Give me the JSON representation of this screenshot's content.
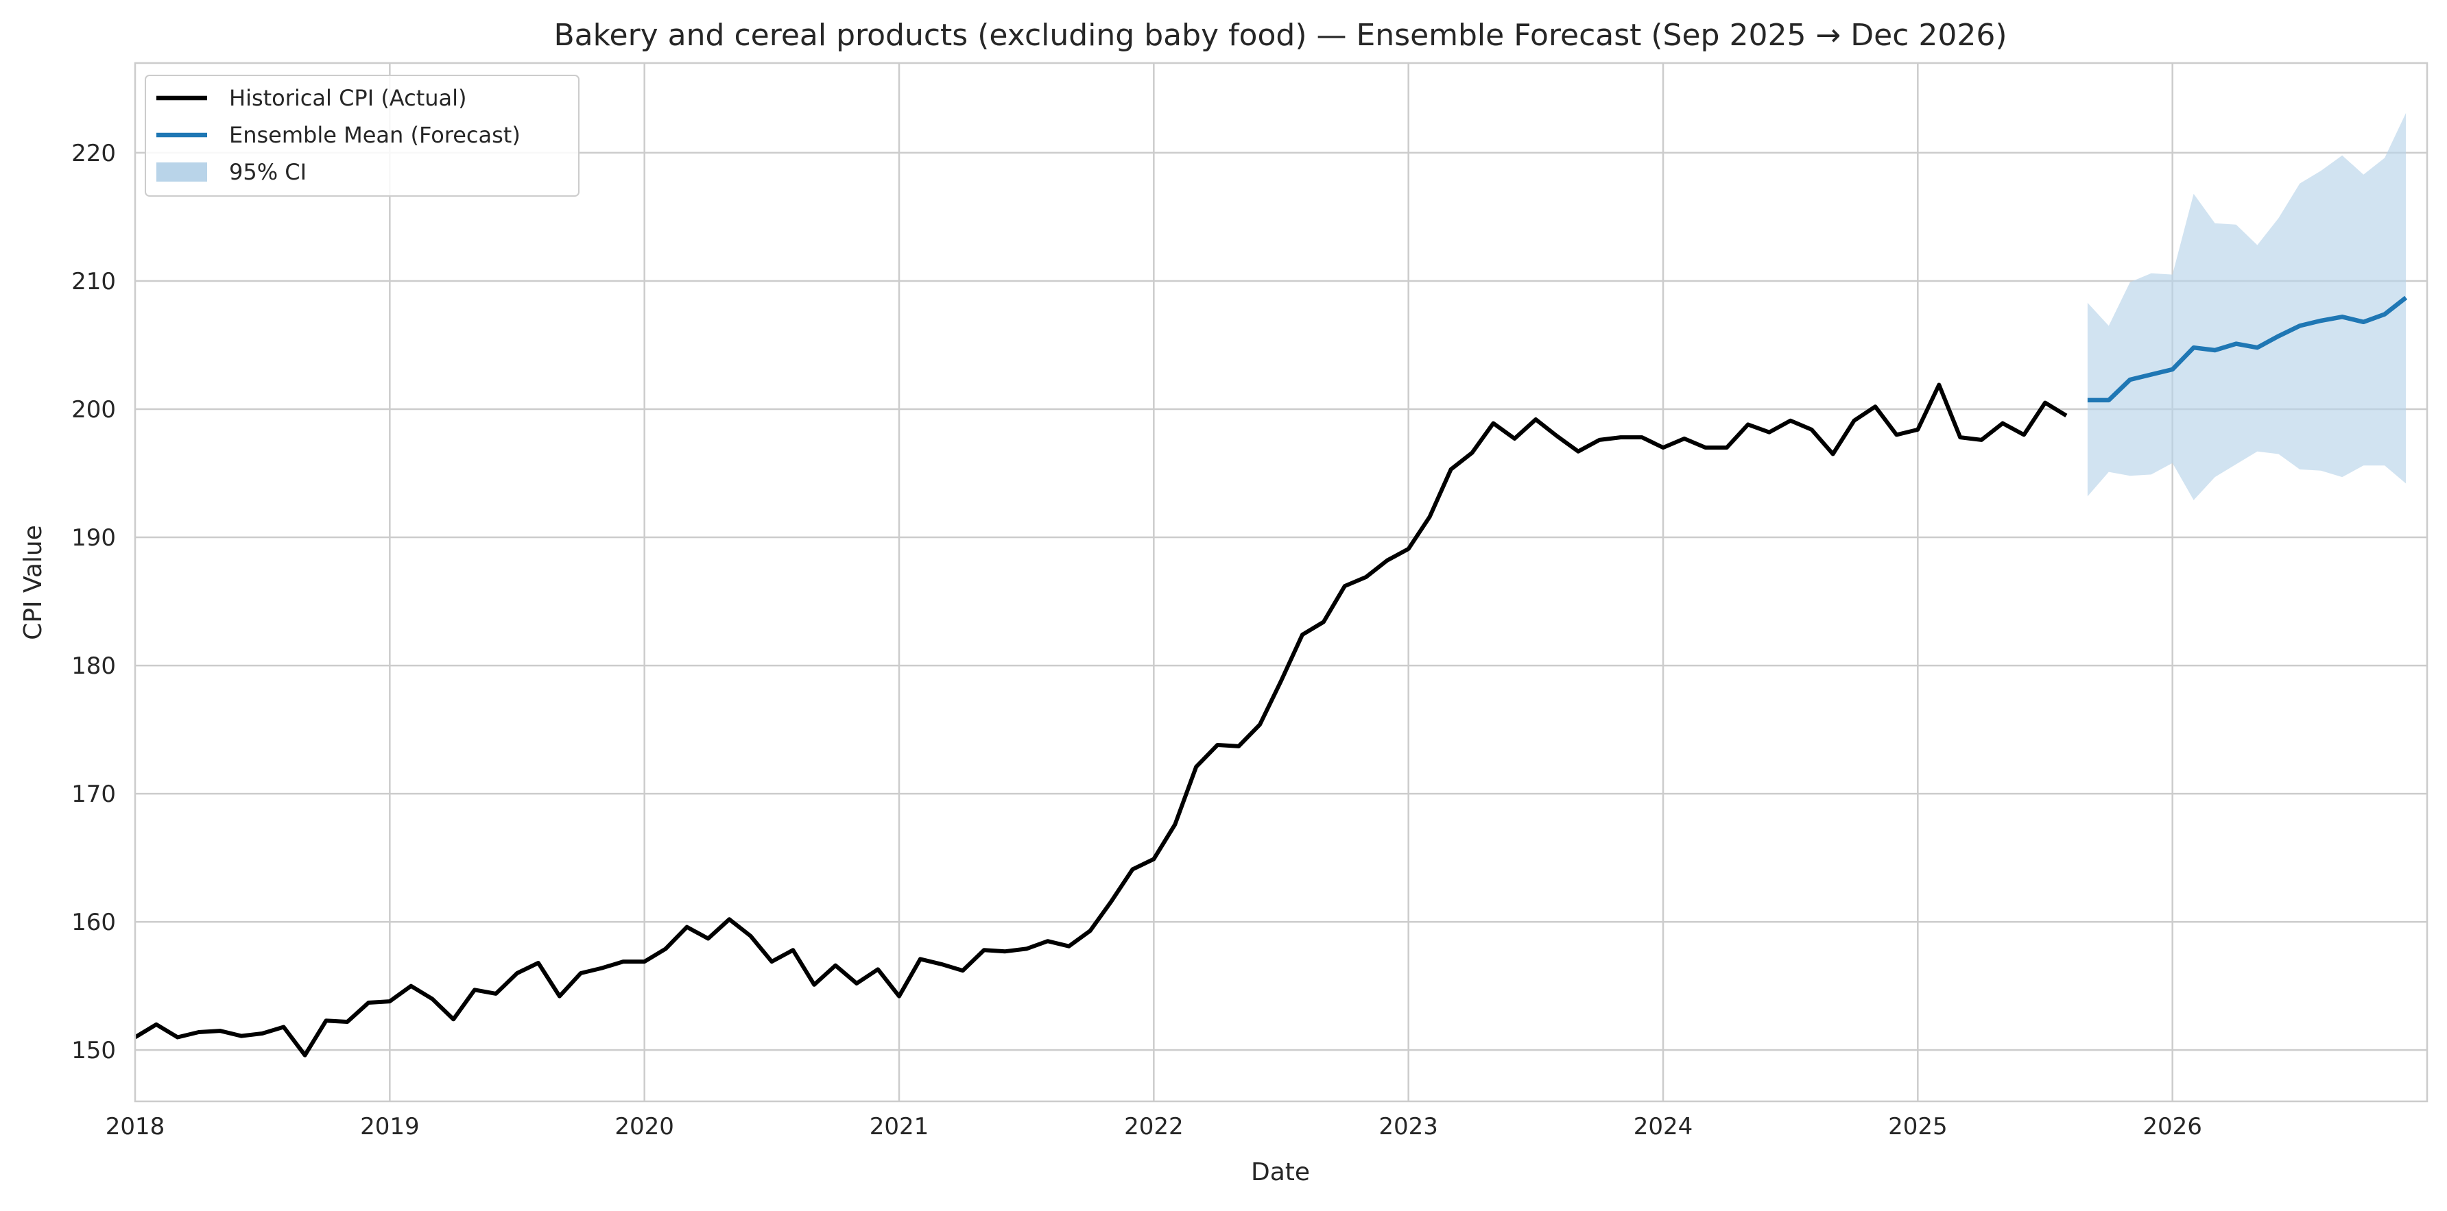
{
  "chart_data": {
    "type": "line",
    "title": "Bakery and cereal products (excluding baby food) — Ensemble Forecast (Sep 2025 → Dec 2026)",
    "xlabel": "Date",
    "ylabel": "CPI Value",
    "xlim": [
      "2018-01",
      "2027-01"
    ],
    "ylim": [
      146,
      227
    ],
    "x_ticks": [
      "2018",
      "2019",
      "2020",
      "2021",
      "2022",
      "2023",
      "2024",
      "2025",
      "2026"
    ],
    "y_ticks": [
      150,
      160,
      170,
      180,
      190,
      200,
      210,
      220
    ],
    "grid": true,
    "legend_position": "top-left",
    "legend": [
      {
        "label": "Historical CPI (Actual)",
        "color": "#000000",
        "kind": "line"
      },
      {
        "label": "Ensemble Mean (Forecast)",
        "color": "#1f77b4",
        "kind": "line"
      },
      {
        "label": "95% CI",
        "color": "#b9d4e9",
        "kind": "patch"
      }
    ],
    "series": [
      {
        "name": "Historical CPI (Actual)",
        "color": "#000000",
        "x": [
          "2018-01",
          "2018-02",
          "2018-03",
          "2018-04",
          "2018-05",
          "2018-06",
          "2018-07",
          "2018-08",
          "2018-09",
          "2018-10",
          "2018-11",
          "2018-12",
          "2019-01",
          "2019-02",
          "2019-03",
          "2019-04",
          "2019-05",
          "2019-06",
          "2019-07",
          "2019-08",
          "2019-09",
          "2019-10",
          "2019-11",
          "2019-12",
          "2020-01",
          "2020-02",
          "2020-03",
          "2020-04",
          "2020-05",
          "2020-06",
          "2020-07",
          "2020-08",
          "2020-09",
          "2020-10",
          "2020-11",
          "2020-12",
          "2021-01",
          "2021-02",
          "2021-03",
          "2021-04",
          "2021-05",
          "2021-06",
          "2021-07",
          "2021-08",
          "2021-09",
          "2021-10",
          "2021-11",
          "2021-12",
          "2022-01",
          "2022-02",
          "2022-03",
          "2022-04",
          "2022-05",
          "2022-06",
          "2022-07",
          "2022-08",
          "2022-09",
          "2022-10",
          "2022-11",
          "2022-12",
          "2023-01",
          "2023-02",
          "2023-03",
          "2023-04",
          "2023-05",
          "2023-06",
          "2023-07",
          "2023-08",
          "2023-09",
          "2023-10",
          "2023-11",
          "2023-12",
          "2024-01",
          "2024-02",
          "2024-03",
          "2024-04",
          "2024-05",
          "2024-06",
          "2024-07",
          "2024-08",
          "2024-09",
          "2024-10",
          "2024-11",
          "2024-12",
          "2025-01",
          "2025-02",
          "2025-03",
          "2025-04",
          "2025-05",
          "2025-06",
          "2025-07",
          "2025-08"
        ],
        "values": [
          151.0,
          152.0,
          151.0,
          151.4,
          151.5,
          151.1,
          151.3,
          151.8,
          149.6,
          152.3,
          152.2,
          153.7,
          153.8,
          155.0,
          154.0,
          152.4,
          154.7,
          154.4,
          156.0,
          156.8,
          154.2,
          156.0,
          156.4,
          156.9,
          156.9,
          157.9,
          159.6,
          158.7,
          160.2,
          158.9,
          156.9,
          157.8,
          155.1,
          156.6,
          155.2,
          156.3,
          154.2,
          157.1,
          156.7,
          156.2,
          157.8,
          157.7,
          157.9,
          158.5,
          158.1,
          159.3,
          161.6,
          164.1,
          164.9,
          167.6,
          172.1,
          173.8,
          173.7,
          175.4,
          178.8,
          182.4,
          183.4,
          186.2,
          186.9,
          188.2,
          189.1,
          191.6,
          195.3,
          196.6,
          198.9,
          197.7,
          199.2,
          197.9,
          196.7,
          197.6,
          197.8,
          197.8,
          197.0,
          197.7,
          197.0,
          197.0,
          198.8,
          198.2,
          199.1,
          198.4,
          196.5,
          199.1,
          200.2,
          198.0,
          198.4,
          201.9,
          197.8,
          197.6,
          198.9,
          198.0,
          200.5,
          199.5
        ]
      },
      {
        "name": "Ensemble Mean (Forecast)",
        "color": "#1f77b4",
        "x": [
          "2025-09",
          "2025-10",
          "2025-11",
          "2025-12",
          "2026-01",
          "2026-02",
          "2026-03",
          "2026-04",
          "2026-05",
          "2026-06",
          "2026-07",
          "2026-08",
          "2026-09",
          "2026-10",
          "2026-11",
          "2026-12"
        ],
        "values": [
          200.7,
          200.7,
          202.3,
          202.7,
          203.1,
          204.8,
          204.6,
          205.1,
          204.8,
          205.7,
          206.5,
          206.9,
          207.2,
          206.8,
          207.4,
          208.7
        ],
        "ci_label": "95% CI",
        "ci_color": "#b9d4e9",
        "ci_lower": [
          193.2,
          195.1,
          194.8,
          194.9,
          195.8,
          192.9,
          194.7,
          195.7,
          196.7,
          196.5,
          195.3,
          195.2,
          194.7,
          195.6,
          195.6,
          194.2
        ],
        "ci_upper": [
          208.3,
          206.5,
          209.9,
          210.6,
          210.5,
          216.8,
          214.5,
          214.4,
          212.8,
          214.9,
          217.6,
          218.6,
          219.8,
          218.3,
          219.6,
          223.1
        ]
      }
    ]
  }
}
